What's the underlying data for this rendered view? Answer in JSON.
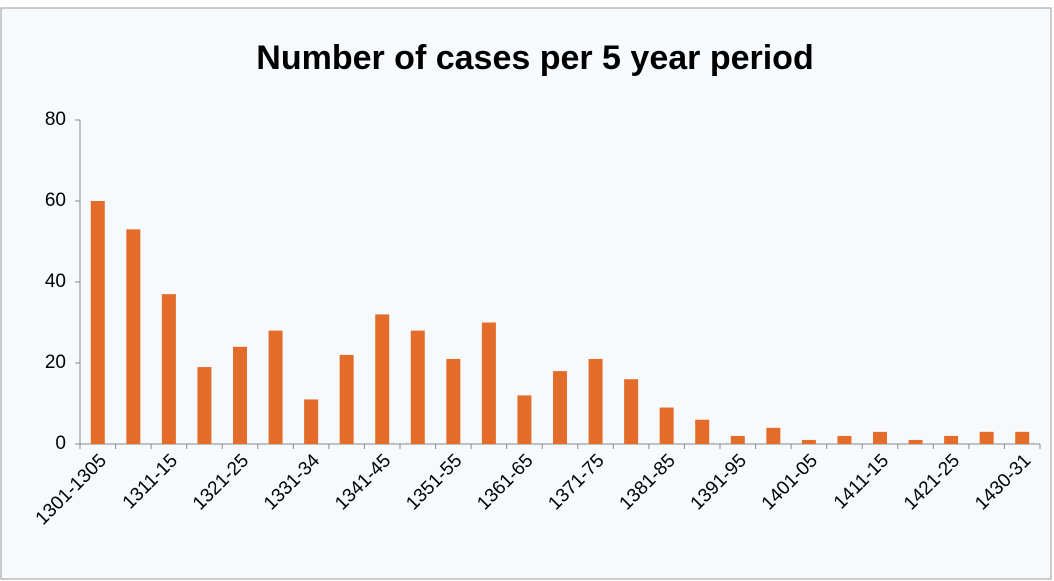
{
  "chart_data": {
    "type": "bar",
    "title": "Number of cases per 5 year period",
    "categories": [
      "1301-1305",
      null,
      "1311-15",
      null,
      "1321-25",
      null,
      "1331-34",
      null,
      "1341-45",
      null,
      "1351-55",
      null,
      "1361-65",
      null,
      "1371-75",
      null,
      "1381-85",
      null,
      "1391-95",
      null,
      "1401-05",
      null,
      "1411-15",
      null,
      "1421-25",
      null,
      "1430-31"
    ],
    "values": [
      60,
      53,
      37,
      19,
      24,
      28,
      11,
      22,
      32,
      28,
      21,
      30,
      12,
      18,
      21,
      16,
      9,
      6,
      2,
      4,
      1,
      2,
      3,
      1,
      2,
      3,
      3
    ],
    "color": "#e46c2a",
    "ylim": [
      0,
      80
    ],
    "yticks": [
      0,
      20,
      40,
      60,
      80
    ],
    "grid": false
  }
}
